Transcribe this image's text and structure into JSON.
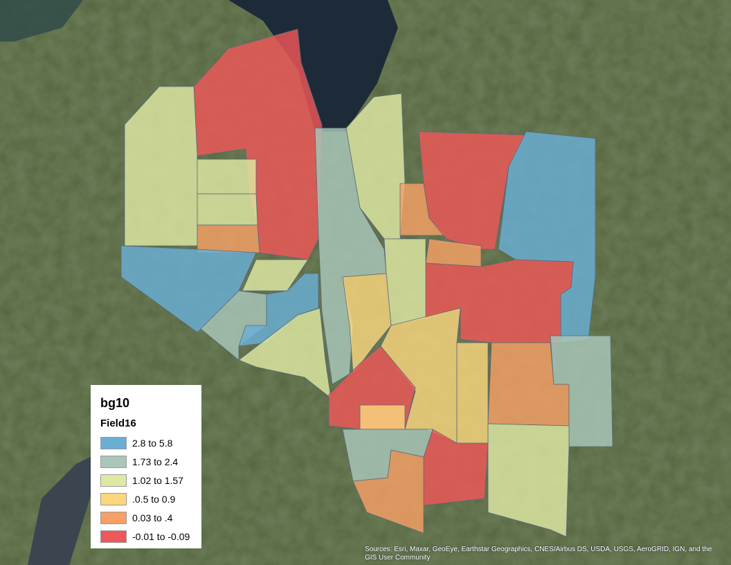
{
  "map": {
    "basemap": "satellite imagery",
    "layer_name": "bg10",
    "field_name": "Field16",
    "classes": [
      {
        "label": "2.8 to 5.8",
        "color": "#6aaed6"
      },
      {
        "label": "1.73 to 2.4",
        "color": "#a9c7b9"
      },
      {
        "label": "1.02 to 1.57",
        "color": "#dfe9a3"
      },
      {
        "label": ".0.5 to 0.9",
        "color": "#fad67f"
      },
      {
        "label": "0.03 to .4",
        "color": "#f7a065"
      },
      {
        "label": "-0.01 to -0.09",
        "color": "#ef5758"
      }
    ],
    "attribution": "Sources: Esri, Maxar, GeoEye, Earthstar Geographics, CNES/Airbus DS, USDA, USGS, AeroGRID, IGN, and the GIS User Community"
  }
}
